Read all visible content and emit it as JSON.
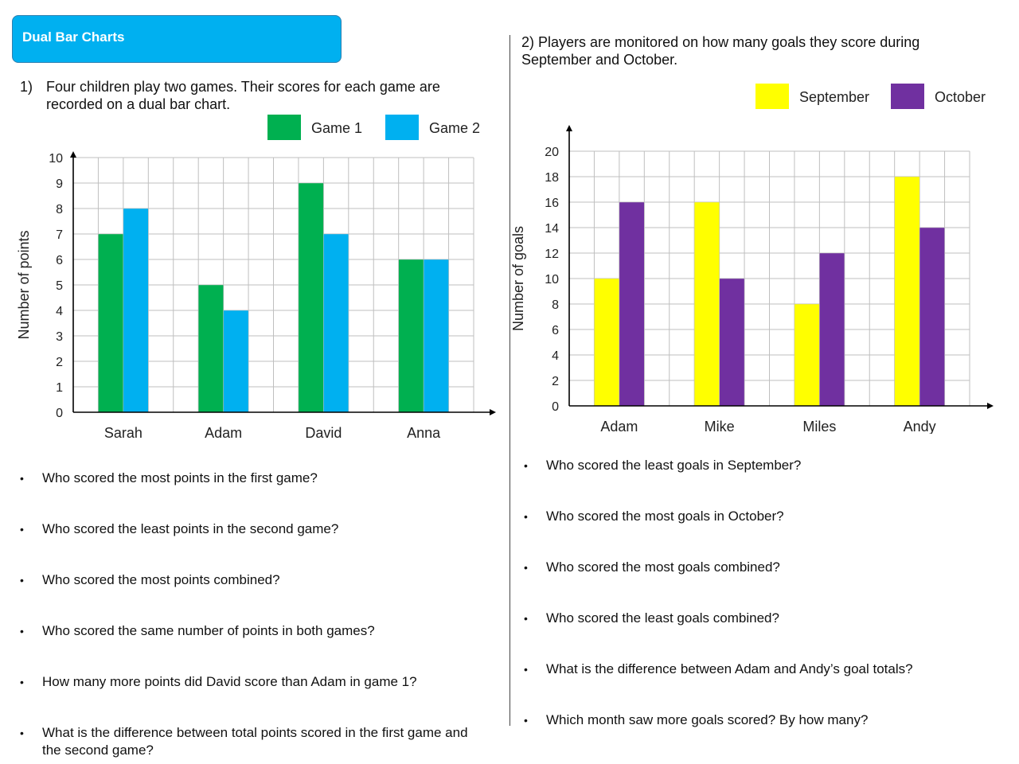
{
  "header": {
    "title": "Dual Bar Charts"
  },
  "q1": {
    "number": "1)",
    "line1": "Four children play two games. Their scores for each game are",
    "line2": "recorded on a dual bar chart.",
    "questions": [
      "Who scored the most points in the first game?",
      "Who scored the least points in the second game?",
      "Who scored the most points combined?",
      "Who scored the same number of points in both games?",
      "How many more points did David score than Adam in game 1?",
      "What is the difference between total points scored in the first game and the second game?"
    ]
  },
  "q2": {
    "line1": "2) Players are monitored on how many goals they score during",
    "line2": "September and October.",
    "questions": [
      "Who scored the least goals in September?",
      "Who scored the most goals in October?",
      "Who scored the most goals combined?",
      "Who scored the least goals combined?",
      "What is the difference between Adam and Andy’s goal totals?",
      "Which month saw more goals scored? By how many?"
    ]
  },
  "chart_data": [
    {
      "type": "bar",
      "categories": [
        "Sarah",
        "Adam",
        "David",
        "Anna"
      ],
      "series": [
        {
          "name": "Game 1",
          "values": [
            7,
            5,
            9,
            6
          ],
          "color": "#00b050"
        },
        {
          "name": "Game 2",
          "values": [
            8,
            4,
            7,
            6
          ],
          "color": "#00b0f0"
        }
      ],
      "ylabel": "Number of points",
      "xlabel": "",
      "ylim": [
        0,
        10
      ],
      "yticks": [
        "0",
        "1",
        "2",
        "3",
        "4",
        "5",
        "6",
        "7",
        "8",
        "9",
        "10"
      ],
      "grid": true,
      "legend": "top-right"
    },
    {
      "type": "bar",
      "categories": [
        "Adam",
        "Mike",
        "Miles",
        "Andy"
      ],
      "series": [
        {
          "name": "September",
          "values": [
            10,
            16,
            8,
            18
          ],
          "color": "#ffff00"
        },
        {
          "name": "October",
          "values": [
            16,
            10,
            12,
            14
          ],
          "color": "#7030a0"
        }
      ],
      "ylabel": "Number of goals",
      "xlabel": "",
      "ylim": [
        0,
        20
      ],
      "yticks": [
        "0",
        "2",
        "4",
        "6",
        "8",
        "10",
        "12",
        "14",
        "16",
        "18",
        "20"
      ],
      "grid": true,
      "legend": "top-right"
    }
  ]
}
